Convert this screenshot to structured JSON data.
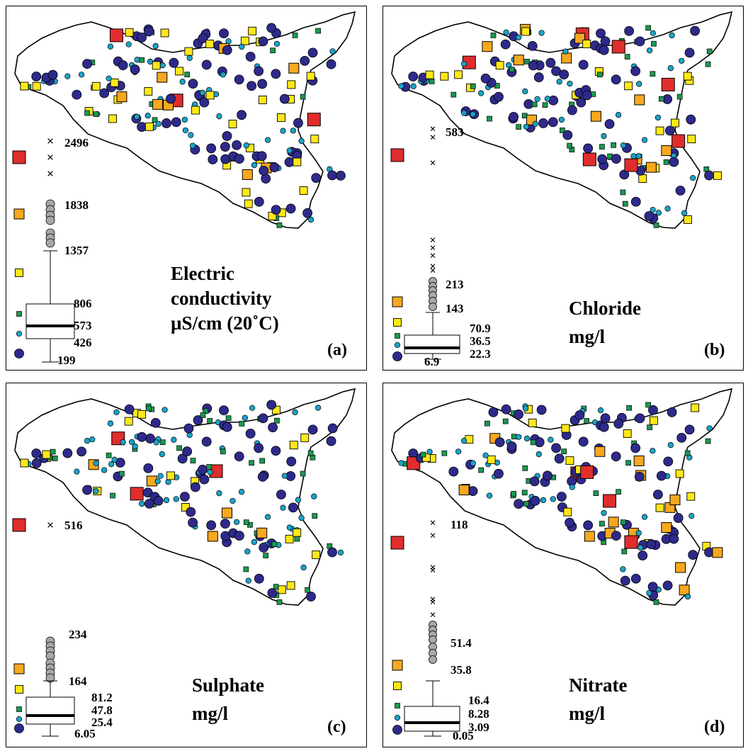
{
  "colors": {
    "class1": "#2e2a8c",
    "class2": "#1aa3c8",
    "class3": "#1a9850",
    "class4": "#ffe817",
    "class5": "#f7a81e",
    "class6": "#e02d2d",
    "outlier": "#a8a8a8",
    "coast": "#000000"
  },
  "panels": [
    {
      "letter": "(a)",
      "title": [
        "Electric",
        "conductivity",
        "µS/cm (20˚C)"
      ],
      "extremes": [
        "2496"
      ],
      "stats": [
        "1838",
        "1357",
        "806",
        "573",
        "426",
        "199"
      ]
    },
    {
      "letter": "(b)",
      "title": [
        "Chloride",
        "mg/l"
      ],
      "extremes": [
        "583"
      ],
      "stats": [
        "213",
        "143",
        "70.9",
        "36.5",
        "22.3",
        "6.9"
      ]
    },
    {
      "letter": "(c)",
      "title": [
        "Sulphate",
        "mg/l"
      ],
      "extremes": [
        "516"
      ],
      "stats": [
        "234",
        "164",
        "81.2",
        "47.8",
        "25.4",
        "6.05"
      ]
    },
    {
      "letter": "(d)",
      "title": [
        "Nitrate",
        "mg/l"
      ],
      "extremes": [
        "118"
      ],
      "stats": [
        "51.4",
        "35.8",
        "16.4",
        "8.28",
        "3.09",
        "0.05"
      ]
    }
  ]
}
